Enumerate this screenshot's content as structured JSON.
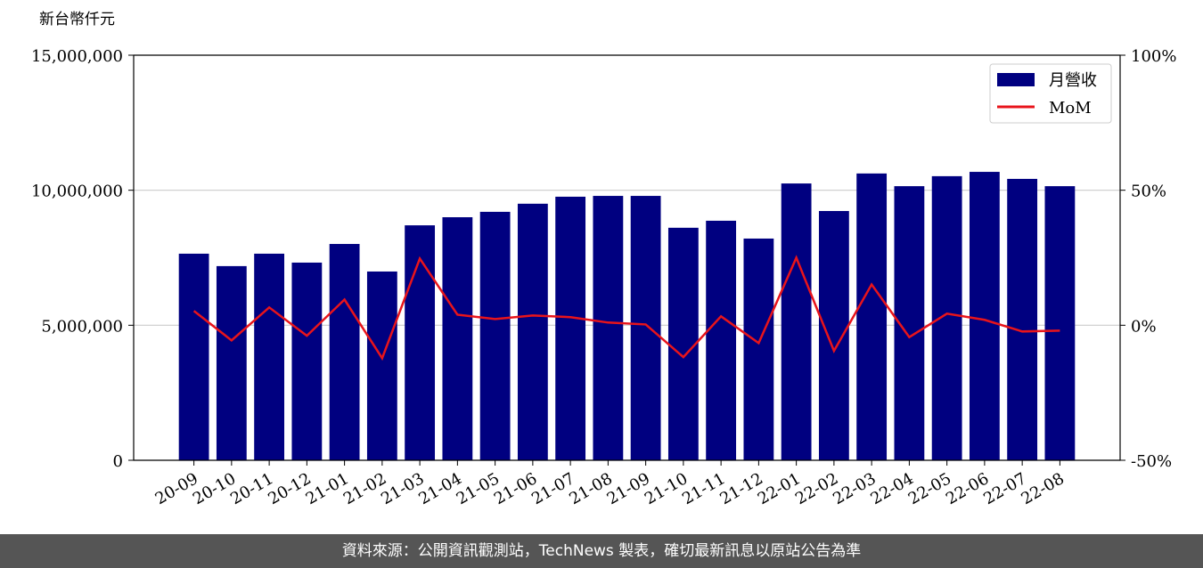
{
  "chart_data": {
    "type": "bar",
    "y_label": "新台幣仟元",
    "categories": [
      "20-09",
      "20-10",
      "20-11",
      "20-12",
      "21-01",
      "21-02",
      "21-03",
      "21-04",
      "21-05",
      "21-06",
      "21-07",
      "21-08",
      "21-09",
      "21-10",
      "21-11",
      "21-12",
      "22-01",
      "22-02",
      "22-03",
      "22-04",
      "22-05",
      "22-06",
      "22-07",
      "22-08"
    ],
    "series": [
      {
        "name": "月營收",
        "type": "bar",
        "color": "#000080",
        "values": [
          7650000,
          7190000,
          7650000,
          7320000,
          8010000,
          6990000,
          8700000,
          9000000,
          9200000,
          9500000,
          9760000,
          9790000,
          9790000,
          8610000,
          8870000,
          8210000,
          10250000,
          9230000,
          10620000,
          10150000,
          10520000,
          10680000,
          10420000,
          10150000
        ]
      },
      {
        "name": "MoM",
        "type": "line",
        "color": "#e8141b",
        "axis": "y2",
        "values": [
          5.3,
          -5.6,
          6.6,
          -3.9,
          9.5,
          -12.2,
          24.7,
          3.9,
          2.3,
          3.6,
          3.0,
          1.0,
          0.3,
          -11.8,
          3.3,
          -6.6,
          25.0,
          -9.5,
          15.1,
          -4.4,
          4.3,
          2.0,
          -2.3,
          -2.0
        ]
      }
    ],
    "ylim": [
      0,
      15000000
    ],
    "yticks": [
      {
        "value": 0,
        "label": "0"
      },
      {
        "value": 5000000,
        "label": "5,000,000"
      },
      {
        "value": 10000000,
        "label": "10,000,000"
      },
      {
        "value": 15000000,
        "label": "15,000,000"
      }
    ],
    "y2lim": [
      -50,
      100
    ],
    "y2ticks": [
      {
        "value": -50,
        "label": "-50%"
      },
      {
        "value": 0,
        "label": "0%"
      },
      {
        "value": 50,
        "label": "50%"
      },
      {
        "value": 100,
        "label": "100%"
      }
    ],
    "grid": true,
    "legend": "upper right"
  },
  "footer": "資料來源：公開資訊觀測站，TechNews 製表，確切最新訊息以原站公告為準"
}
